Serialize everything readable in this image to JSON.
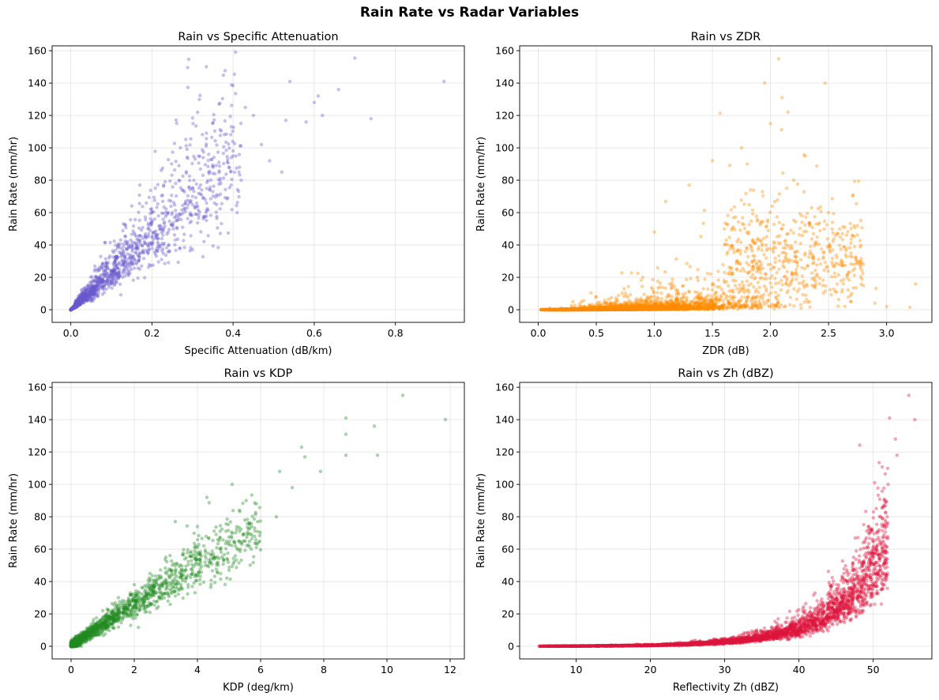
{
  "figure_title": "Rain Rate vs Radar Variables",
  "chart_data": [
    {
      "type": "scatter",
      "title": "Rain vs Specific Attenuation",
      "xlabel": "Specific Attenuation (dB/km)",
      "ylabel": "Rain Rate (mm/hr)",
      "xlim": [
        -0.046,
        0.97
      ],
      "ylim": [
        -7.8,
        163
      ],
      "xticks": [
        0.0,
        0.2,
        0.4,
        0.6,
        0.8
      ],
      "xtick_labels": [
        "0.0",
        "0.2",
        "0.4",
        "0.6",
        "0.8"
      ],
      "yticks": [
        0,
        20,
        40,
        60,
        80,
        100,
        120,
        140,
        160
      ],
      "ytick_labels": [
        "0",
        "20",
        "40",
        "60",
        "80",
        "100",
        "120",
        "140",
        "160"
      ],
      "grid": true,
      "color": "#6a5acd",
      "relationship": "power-law, R ≈ 240·A^1.05, heavy scatter",
      "points": [
        [
          0.92,
          141
        ],
        [
          0.7,
          155.5
        ],
        [
          0.74,
          118
        ],
        [
          0.66,
          136
        ],
        [
          0.61,
          132
        ],
        [
          0.6,
          128
        ],
        [
          0.62,
          120
        ],
        [
          0.58,
          116
        ],
        [
          0.54,
          141
        ],
        [
          0.53,
          117
        ],
        [
          0.52,
          85
        ],
        [
          0.49,
          92
        ],
        [
          0.47,
          102
        ],
        [
          0.45,
          120
        ],
        [
          0.43,
          125
        ],
        [
          0.42,
          80
        ],
        [
          0.41,
          60
        ],
        [
          0.4,
          95
        ],
        [
          0.39,
          88
        ],
        [
          0.37,
          78
        ],
        [
          0.35,
          73
        ],
        [
          0.34,
          85
        ],
        [
          0.32,
          77
        ],
        [
          0.3,
          70
        ],
        [
          0.28,
          62
        ],
        [
          0.27,
          100
        ],
        [
          0.26,
          55
        ],
        [
          0.25,
          60
        ],
        [
          0.24,
          48
        ],
        [
          0.22,
          52
        ],
        [
          0.21,
          45
        ],
        [
          0.2,
          40
        ],
        [
          0.19,
          50
        ],
        [
          0.18,
          35
        ],
        [
          0.17,
          77
        ],
        [
          0.16,
          38
        ],
        [
          0.15,
          30
        ],
        [
          0.14,
          42
        ],
        [
          0.13,
          28
        ],
        [
          0.12,
          25
        ],
        [
          0.11,
          32
        ],
        [
          0.1,
          22
        ],
        [
          0.09,
          28
        ],
        [
          0.08,
          18
        ],
        [
          0.07,
          20
        ],
        [
          0.06,
          25
        ],
        [
          0.05,
          15
        ],
        [
          0.04,
          12
        ],
        [
          0.03,
          10
        ],
        [
          0.02,
          6
        ],
        [
          0.01,
          3
        ],
        [
          0.005,
          1
        ]
      ]
    },
    {
      "type": "scatter",
      "title": "Rain vs ZDR",
      "xlabel": "ZDR (dB)",
      "ylabel": "Rain Rate (mm/hr)",
      "xlim": [
        -0.16,
        3.39
      ],
      "ylim": [
        -7.8,
        163
      ],
      "xticks": [
        0.0,
        0.5,
        1.0,
        1.5,
        2.0,
        2.5,
        3.0
      ],
      "xtick_labels": [
        "0.0",
        "0.5",
        "1.0",
        "1.5",
        "2.0",
        "2.5",
        "3.0"
      ],
      "yticks": [
        0,
        20,
        40,
        60,
        80,
        100,
        120,
        140,
        160
      ],
      "ytick_labels": [
        "0",
        "20",
        "40",
        "60",
        "80",
        "100",
        "120",
        "140",
        "160"
      ],
      "grid": true,
      "color": "#ff8c00",
      "relationship": "wide spread, rain rate increasing with ZDR up to ~2.2 dB",
      "points": [
        [
          2.07,
          155
        ],
        [
          1.95,
          140
        ],
        [
          2.47,
          140
        ],
        [
          2.1,
          131
        ],
        [
          2.15,
          122
        ],
        [
          2.0,
          115
        ],
        [
          1.75,
          100
        ],
        [
          1.8,
          90
        ],
        [
          2.3,
          95
        ],
        [
          1.5,
          92
        ],
        [
          2.2,
          80
        ],
        [
          1.3,
          77
        ],
        [
          2.5,
          60
        ],
        [
          2.6,
          45
        ],
        [
          2.8,
          28
        ],
        [
          3.0,
          2
        ],
        [
          3.2,
          1.5
        ],
        [
          2.9,
          4
        ],
        [
          1.0,
          48
        ],
        [
          0.9,
          20
        ],
        [
          0.5,
          8
        ],
        [
          0.3,
          5
        ],
        [
          0.1,
          1
        ],
        [
          1.2,
          12
        ],
        [
          1.6,
          18
        ],
        [
          1.9,
          30
        ],
        [
          2.1,
          50
        ],
        [
          2.3,
          35
        ],
        [
          2.4,
          22
        ],
        [
          2.7,
          10
        ]
      ]
    },
    {
      "type": "scatter",
      "title": "Rain vs KDP",
      "xlabel": "KDP (deg/km)",
      "ylabel": "Rain Rate (mm/hr)",
      "xlim": [
        -0.6,
        12.45
      ],
      "ylim": [
        -7.8,
        163
      ],
      "xticks": [
        0,
        2,
        4,
        6,
        8,
        10,
        12
      ],
      "xtick_labels": [
        "0",
        "2",
        "4",
        "6",
        "8",
        "10",
        "12"
      ],
      "yticks": [
        0,
        20,
        40,
        60,
        80,
        100,
        120,
        140,
        160
      ],
      "ytick_labels": [
        "0",
        "20",
        "40",
        "60",
        "80",
        "100",
        "120",
        "140",
        "160"
      ],
      "grid": true,
      "color": "#228b22",
      "relationship": "near-linear, R ≈ 13·KDP^0.97",
      "points": [
        [
          10.5,
          155
        ],
        [
          11.85,
          140
        ],
        [
          8.7,
          141
        ],
        [
          9.6,
          136
        ],
        [
          8.7,
          131
        ],
        [
          7.3,
          123
        ],
        [
          9.7,
          118
        ],
        [
          8.7,
          118
        ],
        [
          7.4,
          117
        ],
        [
          7.9,
          108
        ],
        [
          6.6,
          108
        ],
        [
          7.0,
          98
        ],
        [
          5.1,
          100
        ],
        [
          4.3,
          92
        ],
        [
          6.5,
          80
        ],
        [
          5.5,
          78
        ],
        [
          4.0,
          74
        ],
        [
          3.3,
          77
        ],
        [
          5.2,
          62
        ],
        [
          3.0,
          55
        ],
        [
          2.5,
          45
        ],
        [
          2.0,
          38
        ],
        [
          1.5,
          30
        ],
        [
          1.0,
          22
        ],
        [
          0.7,
          15
        ],
        [
          0.4,
          8
        ],
        [
          0.2,
          4
        ],
        [
          0.05,
          1
        ]
      ]
    },
    {
      "type": "scatter",
      "title": "Rain vs Zh (dBZ)",
      "xlabel": "Reflectivity Zh (dBZ)",
      "ylabel": "Rain Rate (mm/hr)",
      "xlim": [
        2.4,
        57.9
      ],
      "ylim": [
        -7.8,
        163
      ],
      "xticks": [
        10,
        20,
        30,
        40,
        50
      ],
      "xtick_labels": [
        "10",
        "20",
        "30",
        "40",
        "50"
      ],
      "yticks": [
        0,
        20,
        40,
        60,
        80,
        100,
        120,
        140,
        160
      ],
      "ytick_labels": [
        "0",
        "20",
        "40",
        "60",
        "80",
        "100",
        "120",
        "140",
        "160"
      ],
      "grid": true,
      "color": "#dc143c",
      "relationship": "exponential, Z-R relation (Marshall-Palmer-like)",
      "points": [
        [
          54.8,
          155
        ],
        [
          52.2,
          141
        ],
        [
          55.6,
          140
        ],
        [
          53,
          128
        ],
        [
          53.2,
          118
        ],
        [
          52,
          100
        ],
        [
          51,
          80
        ],
        [
          50,
          60
        ],
        [
          49,
          45
        ],
        [
          47,
          35
        ],
        [
          45,
          25
        ],
        [
          43,
          18
        ],
        [
          40,
          10
        ],
        [
          35,
          5
        ],
        [
          30,
          2.5
        ],
        [
          25,
          1
        ],
        [
          20,
          0.5
        ],
        [
          10,
          0.1
        ],
        [
          5,
          0
        ]
      ]
    }
  ]
}
